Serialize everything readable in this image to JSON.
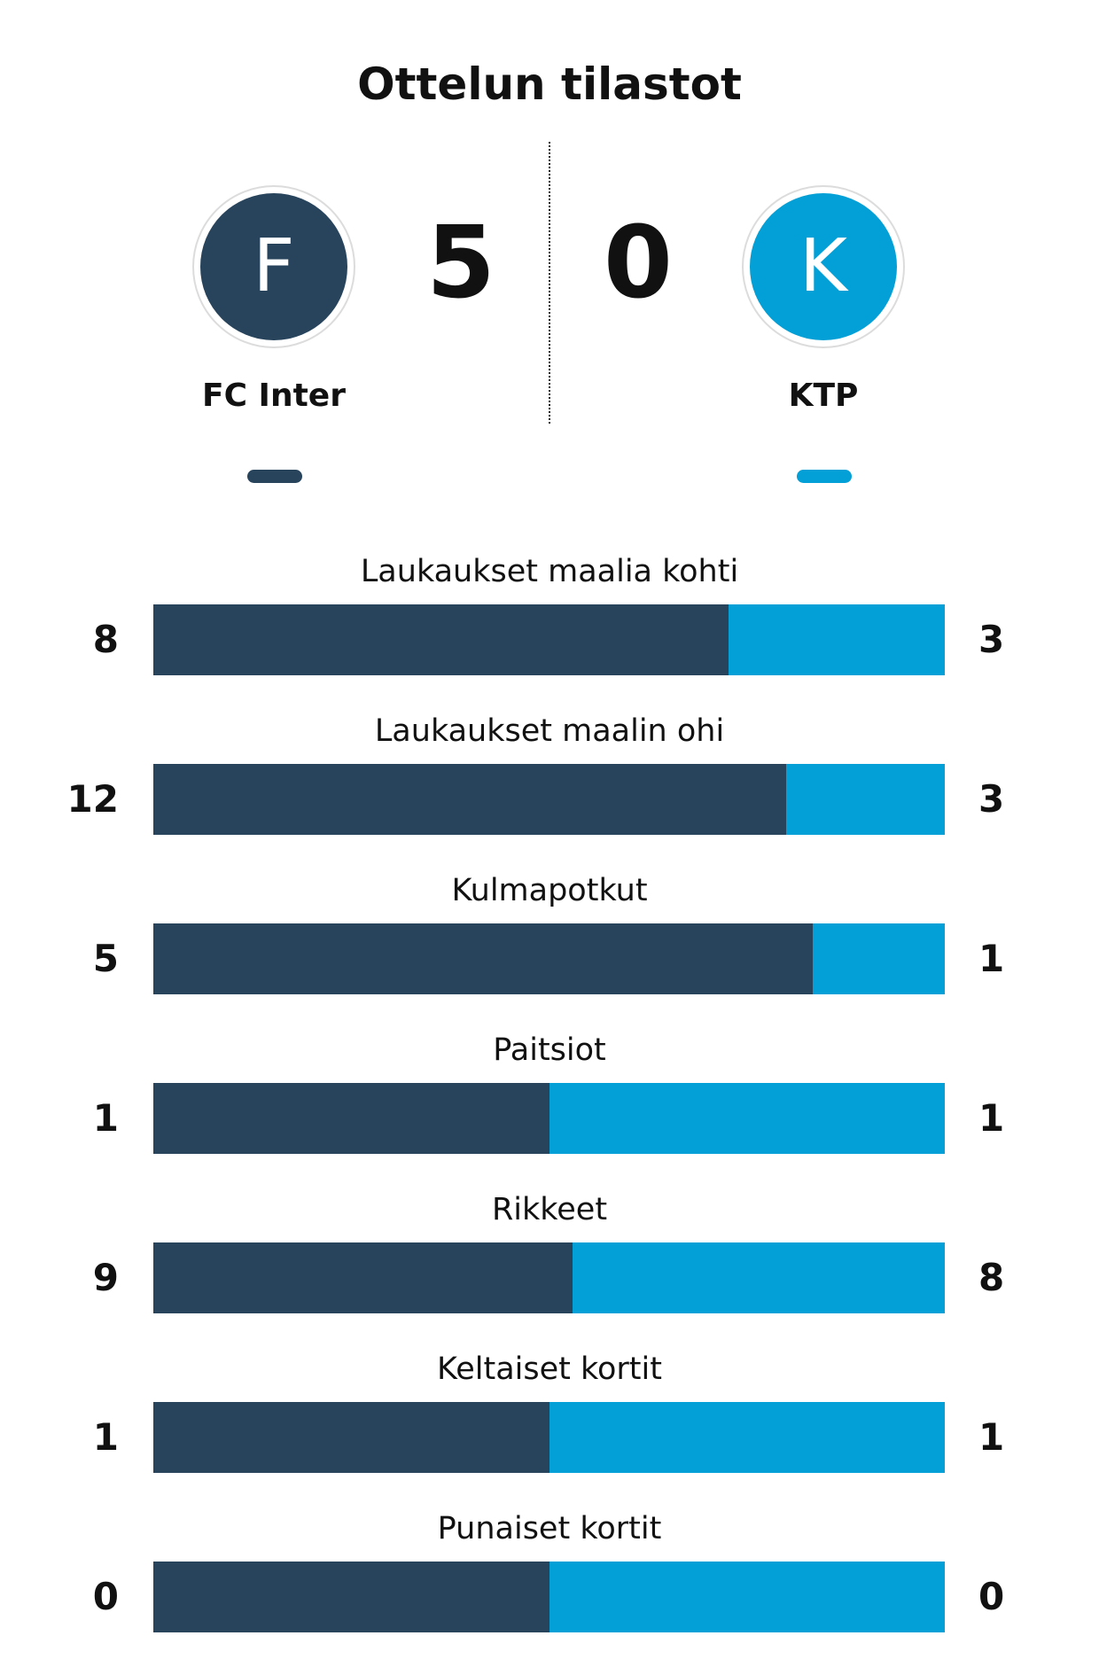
{
  "title": "Ottelun tilastot",
  "home": {
    "name": "FC Inter",
    "initial": "F",
    "score": "5",
    "color": "#27445c"
  },
  "away": {
    "name": "KTP",
    "initial": "K",
    "score": "0",
    "color": "#02a0d6"
  },
  "chart_data": {
    "type": "bar",
    "stacked": "percent",
    "orientation": "horizontal",
    "title": "Ottelun tilastot",
    "categories": [
      "Laukaukset maalia kohti",
      "Laukaukset maalin ohi",
      "Kulmapotkut",
      "Paitsiot",
      "Rikkeet",
      "Keltaiset kortit",
      "Punaiset kortit"
    ],
    "series": [
      {
        "name": "FC Inter",
        "color": "#27445c",
        "values": [
          8,
          12,
          5,
          1,
          9,
          1,
          0
        ]
      },
      {
        "name": "KTP",
        "color": "#02a0d6",
        "values": [
          3,
          3,
          1,
          1,
          8,
          1,
          0
        ]
      }
    ]
  }
}
